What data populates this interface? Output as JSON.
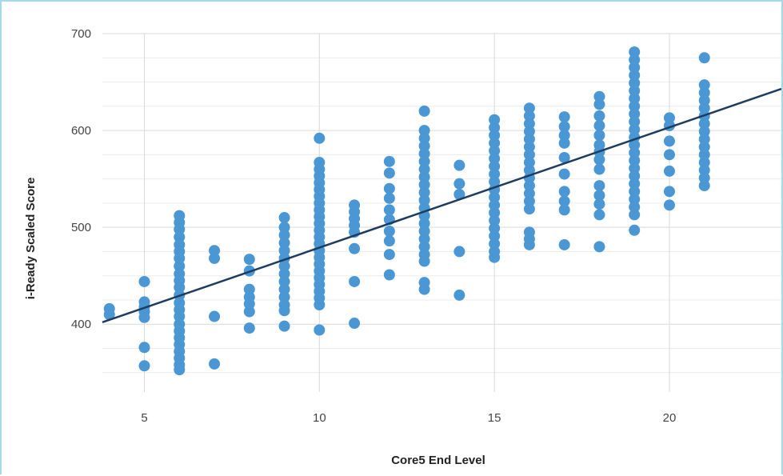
{
  "chart_data": {
    "type": "scatter",
    "title": "",
    "xlabel": "Core5 End Level",
    "ylabel": "i-Ready Scaled Score",
    "xlim": [
      3.8,
      23.2
    ],
    "ylim": [
      330,
      700
    ],
    "x_ticks": [
      5,
      10,
      15,
      20
    ],
    "y_ticks": [
      400,
      500,
      600,
      700
    ],
    "grid": true,
    "legend": "none",
    "point_color": "#4a97d4",
    "trendline_color": "#1d3c60",
    "trendline": {
      "x": [
        3.8,
        23.2
      ],
      "y": [
        402,
        643
      ]
    },
    "series": [
      {
        "points": [
          [
            4,
            416
          ],
          [
            4,
            410
          ],
          [
            5,
            444
          ],
          [
            5,
            423
          ],
          [
            5,
            418
          ],
          [
            5,
            413
          ],
          [
            5,
            407
          ],
          [
            5,
            376
          ],
          [
            5,
            357
          ],
          [
            6,
            512
          ],
          [
            6,
            505
          ],
          [
            6,
            498
          ],
          [
            6,
            490
          ],
          [
            6,
            482
          ],
          [
            6,
            475
          ],
          [
            6,
            468
          ],
          [
            6,
            460
          ],
          [
            6,
            452
          ],
          [
            6,
            445
          ],
          [
            6,
            438
          ],
          [
            6,
            430
          ],
          [
            6,
            422
          ],
          [
            6,
            415
          ],
          [
            6,
            408
          ],
          [
            6,
            400
          ],
          [
            6,
            393
          ],
          [
            6,
            386
          ],
          [
            6,
            379
          ],
          [
            6,
            372
          ],
          [
            6,
            365
          ],
          [
            6,
            358
          ],
          [
            6,
            353
          ],
          [
            7,
            476
          ],
          [
            7,
            468
          ],
          [
            7,
            408
          ],
          [
            7,
            359
          ],
          [
            8,
            467
          ],
          [
            8,
            455
          ],
          [
            8,
            436
          ],
          [
            8,
            428
          ],
          [
            8,
            421
          ],
          [
            8,
            413
          ],
          [
            8,
            396
          ],
          [
            9,
            510
          ],
          [
            9,
            500
          ],
          [
            9,
            492
          ],
          [
            9,
            484
          ],
          [
            9,
            476
          ],
          [
            9,
            468
          ],
          [
            9,
            460
          ],
          [
            9,
            452
          ],
          [
            9,
            444
          ],
          [
            9,
            436
          ],
          [
            9,
            428
          ],
          [
            9,
            420
          ],
          [
            9,
            414
          ],
          [
            9,
            398
          ],
          [
            10,
            592
          ],
          [
            10,
            567
          ],
          [
            10,
            560
          ],
          [
            10,
            553
          ],
          [
            10,
            546
          ],
          [
            10,
            539
          ],
          [
            10,
            532
          ],
          [
            10,
            525
          ],
          [
            10,
            518
          ],
          [
            10,
            511
          ],
          [
            10,
            504
          ],
          [
            10,
            497
          ],
          [
            10,
            490
          ],
          [
            10,
            483
          ],
          [
            10,
            476
          ],
          [
            10,
            469
          ],
          [
            10,
            462
          ],
          [
            10,
            455
          ],
          [
            10,
            448
          ],
          [
            10,
            441
          ],
          [
            10,
            434
          ],
          [
            10,
            427
          ],
          [
            10,
            420
          ],
          [
            10,
            394
          ],
          [
            11,
            523
          ],
          [
            11,
            516
          ],
          [
            11,
            509
          ],
          [
            11,
            502
          ],
          [
            11,
            495
          ],
          [
            11,
            478
          ],
          [
            11,
            444
          ],
          [
            11,
            401
          ],
          [
            12,
            568
          ],
          [
            12,
            556
          ],
          [
            12,
            540
          ],
          [
            12,
            530
          ],
          [
            12,
            518
          ],
          [
            12,
            508
          ],
          [
            12,
            496
          ],
          [
            12,
            486
          ],
          [
            12,
            472
          ],
          [
            12,
            451
          ],
          [
            13,
            620
          ],
          [
            13,
            600
          ],
          [
            13,
            592
          ],
          [
            13,
            584
          ],
          [
            13,
            576
          ],
          [
            13,
            568
          ],
          [
            13,
            560
          ],
          [
            13,
            552
          ],
          [
            13,
            544
          ],
          [
            13,
            536
          ],
          [
            13,
            528
          ],
          [
            13,
            520
          ],
          [
            13,
            512
          ],
          [
            13,
            504
          ],
          [
            13,
            496
          ],
          [
            13,
            488
          ],
          [
            13,
            480
          ],
          [
            13,
            472
          ],
          [
            13,
            465
          ],
          [
            13,
            443
          ],
          [
            13,
            436
          ],
          [
            14,
            564
          ],
          [
            14,
            545
          ],
          [
            14,
            534
          ],
          [
            14,
            475
          ],
          [
            14,
            430
          ],
          [
            15,
            611
          ],
          [
            15,
            603
          ],
          [
            15,
            595
          ],
          [
            15,
            587
          ],
          [
            15,
            579
          ],
          [
            15,
            571
          ],
          [
            15,
            563
          ],
          [
            15,
            555
          ],
          [
            15,
            547
          ],
          [
            15,
            539
          ],
          [
            15,
            531
          ],
          [
            15,
            523
          ],
          [
            15,
            515
          ],
          [
            15,
            507
          ],
          [
            15,
            499
          ],
          [
            15,
            491
          ],
          [
            15,
            483
          ],
          [
            15,
            475
          ],
          [
            15,
            469
          ],
          [
            16,
            623
          ],
          [
            16,
            615
          ],
          [
            16,
            607
          ],
          [
            16,
            599
          ],
          [
            16,
            591
          ],
          [
            16,
            583
          ],
          [
            16,
            575
          ],
          [
            16,
            567
          ],
          [
            16,
            559
          ],
          [
            16,
            551
          ],
          [
            16,
            543
          ],
          [
            16,
            535
          ],
          [
            16,
            527
          ],
          [
            16,
            519
          ],
          [
            16,
            495
          ],
          [
            16,
            488
          ],
          [
            16,
            482
          ],
          [
            17,
            614
          ],
          [
            17,
            604
          ],
          [
            17,
            595
          ],
          [
            17,
            587
          ],
          [
            17,
            572
          ],
          [
            17,
            555
          ],
          [
            17,
            537
          ],
          [
            17,
            527
          ],
          [
            17,
            518
          ],
          [
            17,
            482
          ],
          [
            18,
            635
          ],
          [
            18,
            627
          ],
          [
            18,
            615
          ],
          [
            18,
            605
          ],
          [
            18,
            595
          ],
          [
            18,
            585
          ],
          [
            18,
            578
          ],
          [
            18,
            570
          ],
          [
            18,
            560
          ],
          [
            18,
            543
          ],
          [
            18,
            533
          ],
          [
            18,
            524
          ],
          [
            18,
            513
          ],
          [
            18,
            480
          ],
          [
            19,
            681
          ],
          [
            19,
            673
          ],
          [
            19,
            665
          ],
          [
            19,
            657
          ],
          [
            19,
            649
          ],
          [
            19,
            641
          ],
          [
            19,
            633
          ],
          [
            19,
            625
          ],
          [
            19,
            617
          ],
          [
            19,
            609
          ],
          [
            19,
            601
          ],
          [
            19,
            593
          ],
          [
            19,
            585
          ],
          [
            19,
            577
          ],
          [
            19,
            569
          ],
          [
            19,
            561
          ],
          [
            19,
            553
          ],
          [
            19,
            545
          ],
          [
            19,
            537
          ],
          [
            19,
            529
          ],
          [
            19,
            521
          ],
          [
            19,
            513
          ],
          [
            19,
            497
          ],
          [
            20,
            613
          ],
          [
            20,
            605
          ],
          [
            20,
            589
          ],
          [
            20,
            575
          ],
          [
            20,
            558
          ],
          [
            20,
            537
          ],
          [
            20,
            523
          ],
          [
            21,
            675
          ],
          [
            21,
            647
          ],
          [
            21,
            639
          ],
          [
            21,
            631
          ],
          [
            21,
            623
          ],
          [
            21,
            615
          ],
          [
            21,
            607
          ],
          [
            21,
            599
          ],
          [
            21,
            591
          ],
          [
            21,
            583
          ],
          [
            21,
            575
          ],
          [
            21,
            567
          ],
          [
            21,
            559
          ],
          [
            21,
            551
          ],
          [
            21,
            543
          ]
        ]
      }
    ]
  }
}
